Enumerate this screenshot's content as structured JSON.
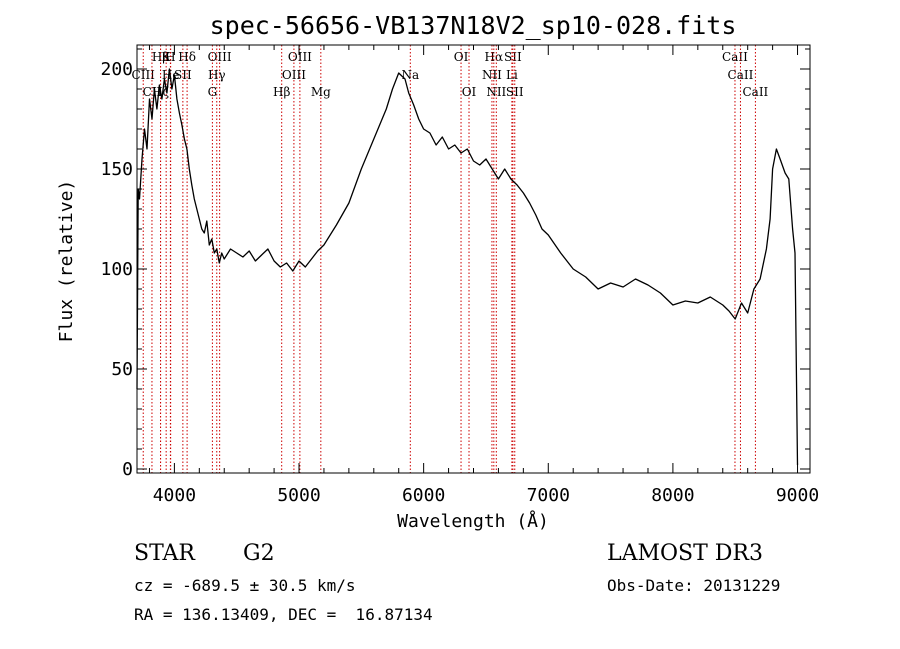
{
  "chart_data": {
    "type": "line",
    "title": "spec-56656-VB137N18V2_sp10-028.fits",
    "xlabel": "Wavelength (Å)",
    "ylabel": "Flux (relative)",
    "xlim": [
      3700,
      9100
    ],
    "ylim": [
      -2,
      212
    ],
    "xticks": [
      4000,
      5000,
      6000,
      7000,
      8000,
      9000
    ],
    "yticks": [
      0,
      50,
      100,
      150,
      200
    ],
    "grid": false,
    "series": [
      {
        "name": "flux",
        "x": [
          3700,
          3710,
          3720,
          3740,
          3760,
          3780,
          3800,
          3820,
          3840,
          3860,
          3880,
          3900,
          3920,
          3940,
          3960,
          3980,
          4000,
          4020,
          4040,
          4060,
          4080,
          4100,
          4120,
          4140,
          4160,
          4180,
          4200,
          4220,
          4240,
          4260,
          4280,
          4300,
          4320,
          4340,
          4360,
          4380,
          4400,
          4450,
          4500,
          4550,
          4600,
          4650,
          4700,
          4750,
          4800,
          4850,
          4900,
          4950,
          5000,
          5050,
          5100,
          5150,
          5200,
          5300,
          5400,
          5500,
          5600,
          5700,
          5750,
          5800,
          5850,
          5880,
          5920,
          5960,
          6000,
          6050,
          6100,
          6150,
          6200,
          6250,
          6300,
          6350,
          6400,
          6450,
          6500,
          6550,
          6600,
          6650,
          6700,
          6750,
          6800,
          6850,
          6900,
          6950,
          7000,
          7100,
          7200,
          7300,
          7400,
          7500,
          7600,
          7700,
          7800,
          7900,
          8000,
          8100,
          8200,
          8300,
          8400,
          8450,
          8500,
          8550,
          8600,
          8650,
          8700,
          8750,
          8780,
          8800,
          8830,
          8860,
          8900,
          8930,
          8960,
          8980,
          9000
        ],
        "y": [
          40,
          140,
          135,
          155,
          170,
          160,
          185,
          175,
          190,
          180,
          192,
          185,
          195,
          188,
          200,
          190,
          197,
          185,
          178,
          172,
          165,
          160,
          150,
          142,
          135,
          130,
          125,
          120,
          118,
          124,
          112,
          115,
          108,
          110,
          103,
          108,
          105,
          110,
          108,
          106,
          109,
          104,
          107,
          110,
          104,
          101,
          103,
          99,
          104,
          101,
          105,
          109,
          112,
          122,
          133,
          150,
          165,
          180,
          190,
          198,
          195,
          188,
          182,
          175,
          170,
          168,
          162,
          166,
          160,
          162,
          158,
          160,
          154,
          152,
          155,
          150,
          145,
          150,
          145,
          142,
          138,
          133,
          127,
          120,
          117,
          108,
          100,
          96,
          90,
          93,
          91,
          95,
          92,
          88,
          82,
          84,
          83,
          86,
          82,
          79,
          75,
          83,
          78,
          90,
          95,
          110,
          125,
          150,
          160,
          155,
          148,
          145,
          120,
          108,
          2
        ]
      }
    ],
    "lines": [
      {
        "name": "CaII H",
        "x": 3968,
        "label": "H",
        "row": 0
      },
      {
        "name": "Hdelta",
        "x": 4102,
        "label": "Hδ",
        "row": 0
      },
      {
        "name": "OIII 4363",
        "x": 4363,
        "label": "OIII",
        "row": 0
      },
      {
        "name": "OIII 5007",
        "x": 5007,
        "label": "OIII",
        "row": 0
      },
      {
        "name": "OI 6300",
        "x": 6300,
        "label": "OI",
        "row": 0
      },
      {
        "name": "Halpha",
        "x": 6563,
        "label": "Hα",
        "row": 0
      },
      {
        "name": "SII 6716",
        "x": 6716,
        "label": "SII",
        "row": 0
      },
      {
        "name": "CaII 8498",
        "x": 8498,
        "label": "CaII",
        "row": 0
      },
      {
        "name": "Hbeta-Hzeta",
        "x": 3889,
        "label": "Hβ",
        "row": 0
      },
      {
        "name": "CaII K",
        "x": 3934,
        "label": "K",
        "row": 0
      },
      {
        "name": "CIII",
        "x": 3750,
        "label": "CIII",
        "row": 1
      },
      {
        "name": "Hepsilon",
        "x": 3970,
        "label": "He",
        "row": 1
      },
      {
        "name": "SII 4068",
        "x": 4068,
        "label": "SII",
        "row": 1
      },
      {
        "name": "Hgamma",
        "x": 4340,
        "label": "Hγ",
        "row": 1
      },
      {
        "name": "OIII 4959",
        "x": 4959,
        "label": "OIII",
        "row": 1
      },
      {
        "name": "Na",
        "x": 5893,
        "label": "Na",
        "row": 1
      },
      {
        "name": "NII 6548",
        "x": 6548,
        "label": "NII",
        "row": 1
      },
      {
        "name": "Li",
        "x": 6708,
        "label": "Li",
        "row": 1
      },
      {
        "name": "CaII 8542",
        "x": 8542,
        "label": "CaII",
        "row": 1
      },
      {
        "name": "CII",
        "x": 3820,
        "label": "CII",
        "row": 2
      },
      {
        "name": "Hzeta",
        "x": 3889,
        "label": "Hζ",
        "row": 2
      },
      {
        "name": "G band",
        "x": 4305,
        "label": "G",
        "row": 2
      },
      {
        "name": "Hbeta",
        "x": 4861,
        "label": "Hβ",
        "row": 2
      },
      {
        "name": "Mg",
        "x": 5175,
        "label": "Mg",
        "row": 2
      },
      {
        "name": "OI 6364",
        "x": 6364,
        "label": "OI",
        "row": 2
      },
      {
        "name": "NII 6583",
        "x": 6583,
        "label": "NII",
        "row": 2
      },
      {
        "name": "SII 6731",
        "x": 6731,
        "label": "SII",
        "row": 2
      },
      {
        "name": "CaII 8662",
        "x": 8662,
        "label": "CaII",
        "row": 2
      }
    ]
  },
  "info": {
    "object_class": "STAR",
    "subclass": "G2",
    "survey": "LAMOST DR3",
    "redshift": "cz = -689.5 ± 30.5 km/s",
    "obs_date": "Obs-Date: 20131229",
    "coords": "RA = 136.13409, DEC =  16.87134"
  },
  "colors": {
    "line": "#000000",
    "marker": "#cc0000"
  }
}
